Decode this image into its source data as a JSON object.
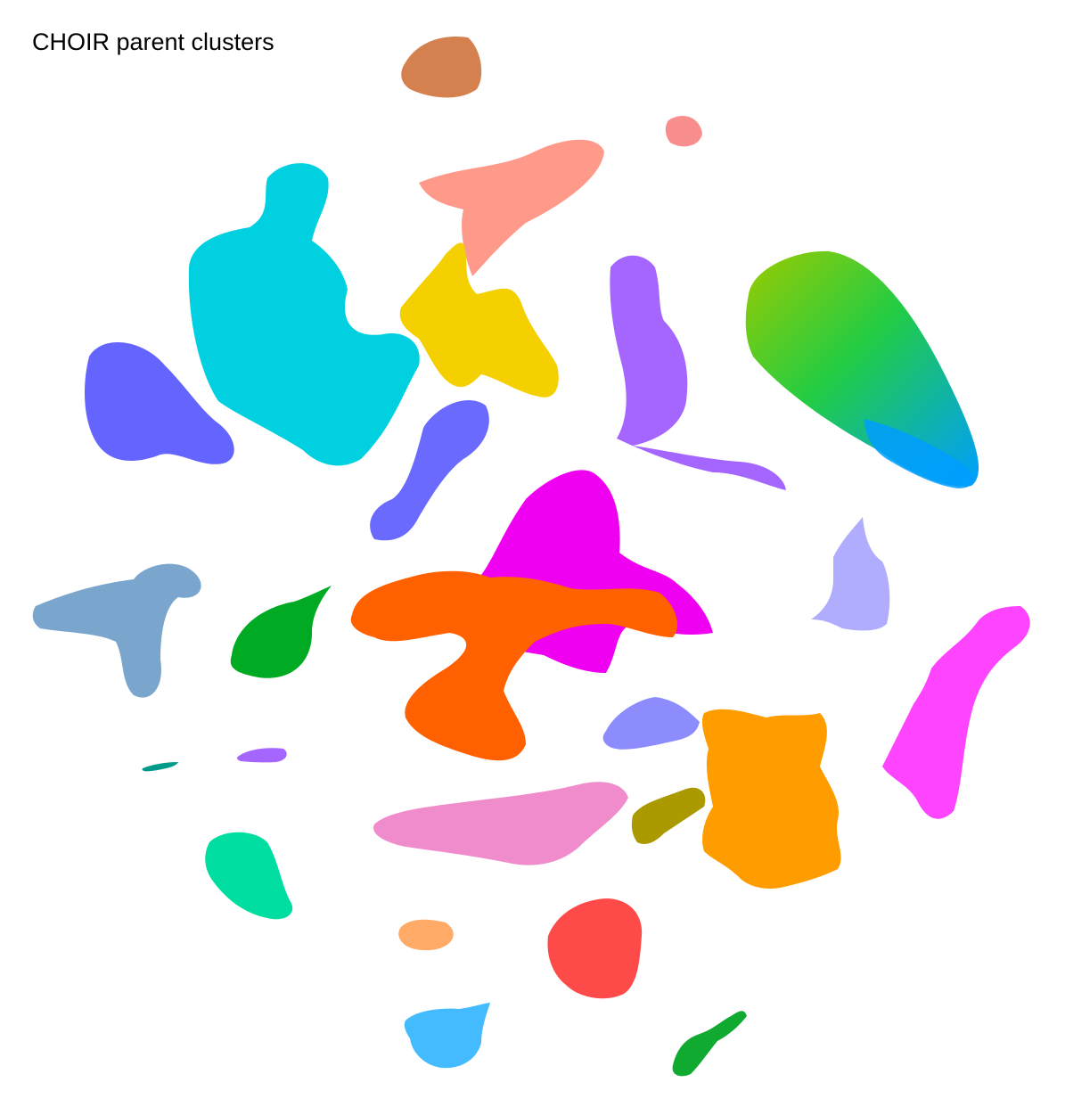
{
  "chart_data": {
    "type": "scatter",
    "title": "CHOIR parent clusters",
    "xlabel": "",
    "ylabel": "",
    "axes": "hidden",
    "grid": false,
    "legend": "none",
    "clusters": [
      {
        "color": "#D4804F"
      },
      {
        "color": "#FF9A8A"
      },
      {
        "color": "#F98E8E"
      },
      {
        "color": "#00D0E0"
      },
      {
        "color": "#F5D000"
      },
      {
        "color": "#A566FF"
      },
      {
        "color": "#22CC44"
      },
      {
        "color": "#009EFF"
      },
      {
        "color": "#6464FF"
      },
      {
        "color": "#6A6AFF"
      },
      {
        "color": "#7AA5CC"
      },
      {
        "color": "#00AA22"
      },
      {
        "color": "#F000F0"
      },
      {
        "color": "#FF6000"
      },
      {
        "color": "#B0ADFF"
      },
      {
        "color": "#FF44FF"
      },
      {
        "color": "#8C8CFF"
      },
      {
        "color": "#FF9D00"
      },
      {
        "color": "#AA9A00"
      },
      {
        "color": "#F08CCC"
      },
      {
        "color": "#00DDA0"
      },
      {
        "color": "#FFAA66"
      },
      {
        "color": "#FF4A4A"
      },
      {
        "color": "#44BBFF"
      },
      {
        "color": "#10AA30"
      },
      {
        "color": "#A566FF"
      },
      {
        "color": "#009A8A"
      }
    ]
  }
}
